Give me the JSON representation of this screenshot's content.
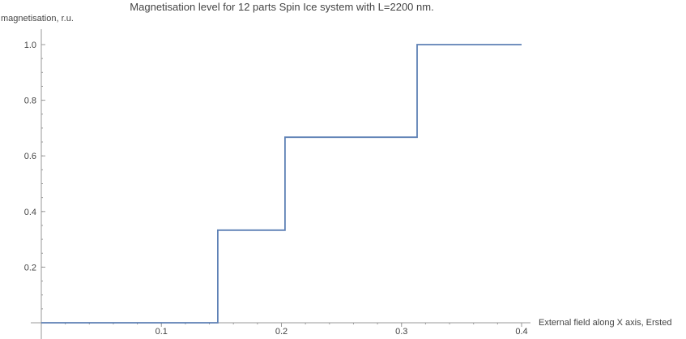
{
  "chart_data": {
    "type": "line",
    "step": true,
    "title": "Magnetisation level for 12 parts Spin Ice system with L=2200 nm.",
    "xlabel": "External field along X axis, Ersted",
    "ylabel": "magnetisation, r.u.",
    "xlim": [
      0,
      0.4
    ],
    "ylim": [
      0,
      1.0
    ],
    "x_ticks": [
      0.1,
      0.2,
      0.3,
      0.4
    ],
    "x_tick_labels": [
      "0.1",
      "0.2",
      "0.3",
      "0.4"
    ],
    "y_ticks": [
      0.2,
      0.4,
      0.6,
      0.8,
      1.0
    ],
    "y_tick_labels": [
      "0.2",
      "0.4",
      "0.6",
      "0.8",
      "1.0"
    ],
    "grid": false,
    "series": [
      {
        "color": "#5e81b5",
        "x": [
          0,
          0.147,
          0.147,
          0.203,
          0.203,
          0.313,
          0.313,
          0.4
        ],
        "y": [
          0,
          0,
          0.333,
          0.333,
          0.667,
          0.667,
          1.0,
          1.0
        ]
      }
    ]
  }
}
